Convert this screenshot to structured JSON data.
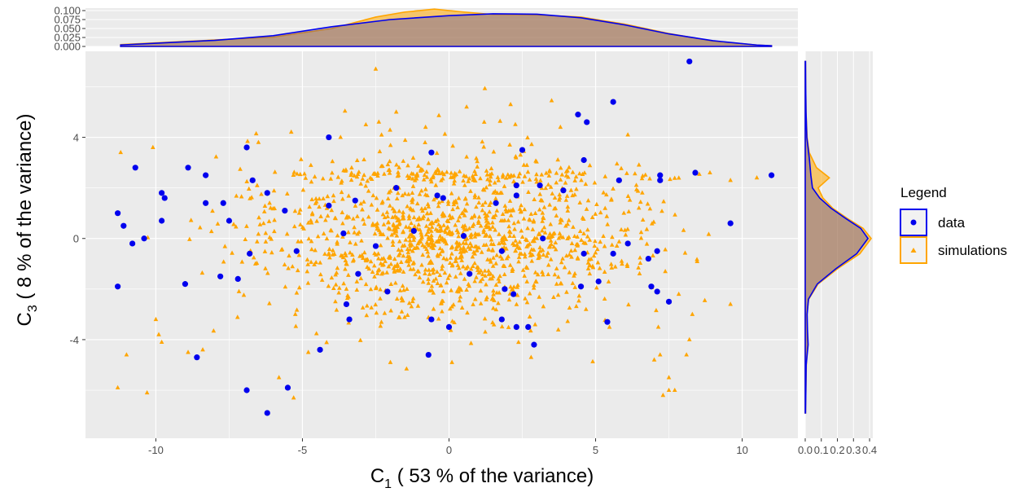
{
  "chart_data": {
    "type": "scatter",
    "xlabel": {
      "sym": "C",
      "sub": "1",
      "rest": "  ( 53 % of the variance)"
    },
    "ylabel": {
      "sym": "C",
      "sub": "3",
      "rest": "  ( 8 % of the variance)"
    },
    "xlim": [
      -12.4,
      11.9
    ],
    "ylim": [
      -7.9,
      7.4
    ],
    "x_ticks": [
      -10,
      -5,
      0,
      5,
      10
    ],
    "y_ticks": [
      -4,
      0,
      4
    ],
    "grid": true,
    "legend": {
      "title": "Legend",
      "position": "right",
      "items": [
        {
          "label": "data",
          "color": "#0000ee",
          "shape": "circle"
        },
        {
          "label": "simulations",
          "color": "#ffa500",
          "shape": "triangle"
        }
      ]
    },
    "series": [
      {
        "name": "data",
        "color": "#0000ee",
        "shape": "circle",
        "points": [
          [
            8.2,
            7.0
          ],
          [
            5.6,
            5.4
          ],
          [
            4.4,
            4.9
          ],
          [
            4.7,
            4.6
          ],
          [
            -4.1,
            4.0
          ],
          [
            -0.6,
            3.4
          ],
          [
            -6.9,
            3.6
          ],
          [
            2.5,
            3.5
          ],
          [
            4.6,
            3.1
          ],
          [
            -10.7,
            2.8
          ],
          [
            -8.9,
            2.8
          ],
          [
            -8.3,
            2.5
          ],
          [
            8.4,
            2.6
          ],
          [
            11.0,
            2.5
          ],
          [
            -6.7,
            2.3
          ],
          [
            5.8,
            2.3
          ],
          [
            7.2,
            2.5
          ],
          [
            7.2,
            2.3
          ],
          [
            -1.8,
            2.0
          ],
          [
            -9.8,
            1.8
          ],
          [
            -9.7,
            1.6
          ],
          [
            -6.2,
            1.8
          ],
          [
            -0.4,
            1.7
          ],
          [
            2.3,
            2.1
          ],
          [
            3.1,
            2.1
          ],
          [
            3.9,
            1.9
          ],
          [
            2.3,
            1.7
          ],
          [
            -8.3,
            1.4
          ],
          [
            -7.7,
            1.4
          ],
          [
            -11.3,
            1.0
          ],
          [
            -5.6,
            1.1
          ],
          [
            -4.1,
            1.3
          ],
          [
            -3.2,
            1.5
          ],
          [
            -0.2,
            1.6
          ],
          [
            1.6,
            1.4
          ],
          [
            -11.1,
            0.5
          ],
          [
            -9.8,
            0.7
          ],
          [
            -7.5,
            0.7
          ],
          [
            9.6,
            0.6
          ],
          [
            -10.8,
            -0.2
          ],
          [
            -10.4,
            0.0
          ],
          [
            -6.8,
            -0.6
          ],
          [
            -5.2,
            -0.5
          ],
          [
            -3.6,
            0.2
          ],
          [
            -2.5,
            -0.3
          ],
          [
            -1.2,
            0.3
          ],
          [
            0.5,
            0.1
          ],
          [
            1.8,
            -0.5
          ],
          [
            3.2,
            0.0
          ],
          [
            4.6,
            -0.6
          ],
          [
            5.6,
            -0.6
          ],
          [
            6.1,
            -0.2
          ],
          [
            7.1,
            -0.5
          ],
          [
            6.8,
            -0.8
          ],
          [
            -11.3,
            -1.9
          ],
          [
            -9.0,
            -1.8
          ],
          [
            -7.8,
            -1.5
          ],
          [
            -7.2,
            -1.6
          ],
          [
            -3.1,
            -1.4
          ],
          [
            -2.1,
            -2.1
          ],
          [
            0.7,
            -1.4
          ],
          [
            1.9,
            -2.0
          ],
          [
            2.2,
            -2.2
          ],
          [
            4.5,
            -1.9
          ],
          [
            5.1,
            -1.7
          ],
          [
            6.9,
            -1.9
          ],
          [
            7.1,
            -2.1
          ],
          [
            -3.5,
            -2.6
          ],
          [
            7.5,
            -2.5
          ],
          [
            -3.4,
            -3.2
          ],
          [
            -0.6,
            -3.2
          ],
          [
            0.0,
            -3.5
          ],
          [
            1.8,
            -3.2
          ],
          [
            2.3,
            -3.5
          ],
          [
            2.7,
            -3.5
          ],
          [
            5.4,
            -3.3
          ],
          [
            -4.4,
            -4.4
          ],
          [
            -0.7,
            -4.6
          ],
          [
            2.9,
            -4.2
          ],
          [
            -8.6,
            -4.7
          ],
          [
            -5.5,
            -5.9
          ],
          [
            -6.9,
            -6.0
          ],
          [
            -6.2,
            -6.9
          ]
        ]
      },
      {
        "name": "simulations",
        "color": "#ffa500",
        "shape": "triangle",
        "n": 1400,
        "sigma_x": 4.6,
        "sigma_y": 1.55,
        "extra_points": [
          [
            -2.5,
            6.7
          ],
          [
            0.6,
            5.2
          ],
          [
            -1.8,
            5.0
          ],
          [
            2.1,
            5.3
          ],
          [
            -0.8,
            4.4
          ],
          [
            1.2,
            4.6
          ],
          [
            3.8,
            4.4
          ],
          [
            6.1,
            4.1
          ],
          [
            -3.7,
            4.0
          ],
          [
            -6.5,
            3.8
          ],
          [
            -11.2,
            3.4
          ],
          [
            -10.1,
            3.6
          ],
          [
            8.9,
            2.6
          ],
          [
            9.6,
            2.3
          ],
          [
            10.5,
            2.4
          ],
          [
            -11.0,
            -4.6
          ],
          [
            -9.9,
            -3.8
          ],
          [
            -10.0,
            -3.2
          ],
          [
            -5.8,
            -5.5
          ],
          [
            -5.3,
            -6.3
          ],
          [
            -11.3,
            -5.9
          ],
          [
            -10.3,
            -6.1
          ],
          [
            7.2,
            -4.6
          ],
          [
            7.5,
            -5.5
          ],
          [
            7.0,
            -4.8
          ],
          [
            8.1,
            -4.6
          ],
          [
            8.2,
            -4.0
          ],
          [
            7.5,
            -6.0
          ],
          [
            7.7,
            -6.0
          ],
          [
            7.3,
            -6.2
          ],
          [
            9.6,
            -2.6
          ],
          [
            -4.8,
            -4.5
          ],
          [
            -8.9,
            -4.5
          ],
          [
            -8.4,
            -4.4
          ],
          [
            -3.5,
            -2.0
          ],
          [
            -9.8,
            -4.1
          ],
          [
            8.3,
            -3.0
          ],
          [
            2.8,
            -4.7
          ],
          [
            0.1,
            -4.9
          ],
          [
            -2.0,
            -4.9
          ]
        ]
      }
    ],
    "top_density": {
      "ticks": [
        "0.000",
        "0.025",
        "0.050",
        "0.075",
        "0.100"
      ],
      "tick_values": [
        0,
        0.025,
        0.05,
        0.075,
        0.1
      ],
      "range": [
        0,
        0.1
      ],
      "data_curve": [
        [
          -11.2,
          0.004
        ],
        [
          -10,
          0.009
        ],
        [
          -8,
          0.017
        ],
        [
          -6,
          0.03
        ],
        [
          -4,
          0.055
        ],
        [
          -2,
          0.075
        ],
        [
          0,
          0.086
        ],
        [
          1.5,
          0.091
        ],
        [
          3,
          0.09
        ],
        [
          4.5,
          0.08
        ],
        [
          6,
          0.06
        ],
        [
          7.5,
          0.035
        ],
        [
          9,
          0.016
        ],
        [
          10.5,
          0.004
        ],
        [
          11.0,
          0.002
        ]
      ],
      "sim_curve": [
        [
          -11.2,
          0.005
        ],
        [
          -10,
          0.01
        ],
        [
          -8,
          0.018
        ],
        [
          -6,
          0.026
        ],
        [
          -4,
          0.05
        ],
        [
          -2.5,
          0.082
        ],
        [
          -1.5,
          0.096
        ],
        [
          -0.5,
          0.104
        ],
        [
          0.5,
          0.096
        ],
        [
          1.5,
          0.089
        ],
        [
          3,
          0.088
        ],
        [
          4.5,
          0.082
        ],
        [
          6,
          0.062
        ],
        [
          7.5,
          0.036
        ],
        [
          9,
          0.015
        ],
        [
          10.5,
          0.004
        ],
        [
          11.0,
          0.002
        ]
      ]
    },
    "right_density": {
      "ticks": [
        "0.0",
        "0.1",
        "0.2",
        "0.3",
        "0.4"
      ],
      "tick_values": [
        0,
        0.1,
        0.2,
        0.3,
        0.4
      ],
      "range": [
        0,
        0.42
      ],
      "data_curve": [
        [
          -6.9,
          0.002
        ],
        [
          -6.0,
          0.004
        ],
        [
          -5.0,
          0.006
        ],
        [
          -4.2,
          0.018
        ],
        [
          -3.6,
          0.014
        ],
        [
          -3.0,
          0.012
        ],
        [
          -2.4,
          0.02
        ],
        [
          -1.8,
          0.075
        ],
        [
          -1.2,
          0.19
        ],
        [
          -0.6,
          0.32
        ],
        [
          0.0,
          0.39
        ],
        [
          0.4,
          0.345
        ],
        [
          0.8,
          0.25
        ],
        [
          1.2,
          0.16
        ],
        [
          1.6,
          0.09
        ],
        [
          2.0,
          0.045
        ],
        [
          2.5,
          0.035
        ],
        [
          3.2,
          0.025
        ],
        [
          4.0,
          0.01
        ],
        [
          5.0,
          0.005
        ],
        [
          6.0,
          0.003
        ],
        [
          7.0,
          0.002
        ]
      ],
      "sim_curve": [
        [
          -6.9,
          0.002
        ],
        [
          -6.0,
          0.004
        ],
        [
          -5.0,
          0.007
        ],
        [
          -4.2,
          0.015
        ],
        [
          -3.6,
          0.012
        ],
        [
          -3.0,
          0.01
        ],
        [
          -2.4,
          0.022
        ],
        [
          -1.8,
          0.08
        ],
        [
          -1.2,
          0.2
        ],
        [
          -0.6,
          0.34
        ],
        [
          0.0,
          0.41
        ],
        [
          0.4,
          0.36
        ],
        [
          0.8,
          0.26
        ],
        [
          1.2,
          0.17
        ],
        [
          1.6,
          0.11
        ],
        [
          2.0,
          0.08
        ],
        [
          2.4,
          0.15
        ],
        [
          2.8,
          0.07
        ],
        [
          3.4,
          0.025
        ],
        [
          4.0,
          0.012
        ],
        [
          5.0,
          0.005
        ],
        [
          6.0,
          0.003
        ],
        [
          7.0,
          0.002
        ]
      ]
    }
  }
}
